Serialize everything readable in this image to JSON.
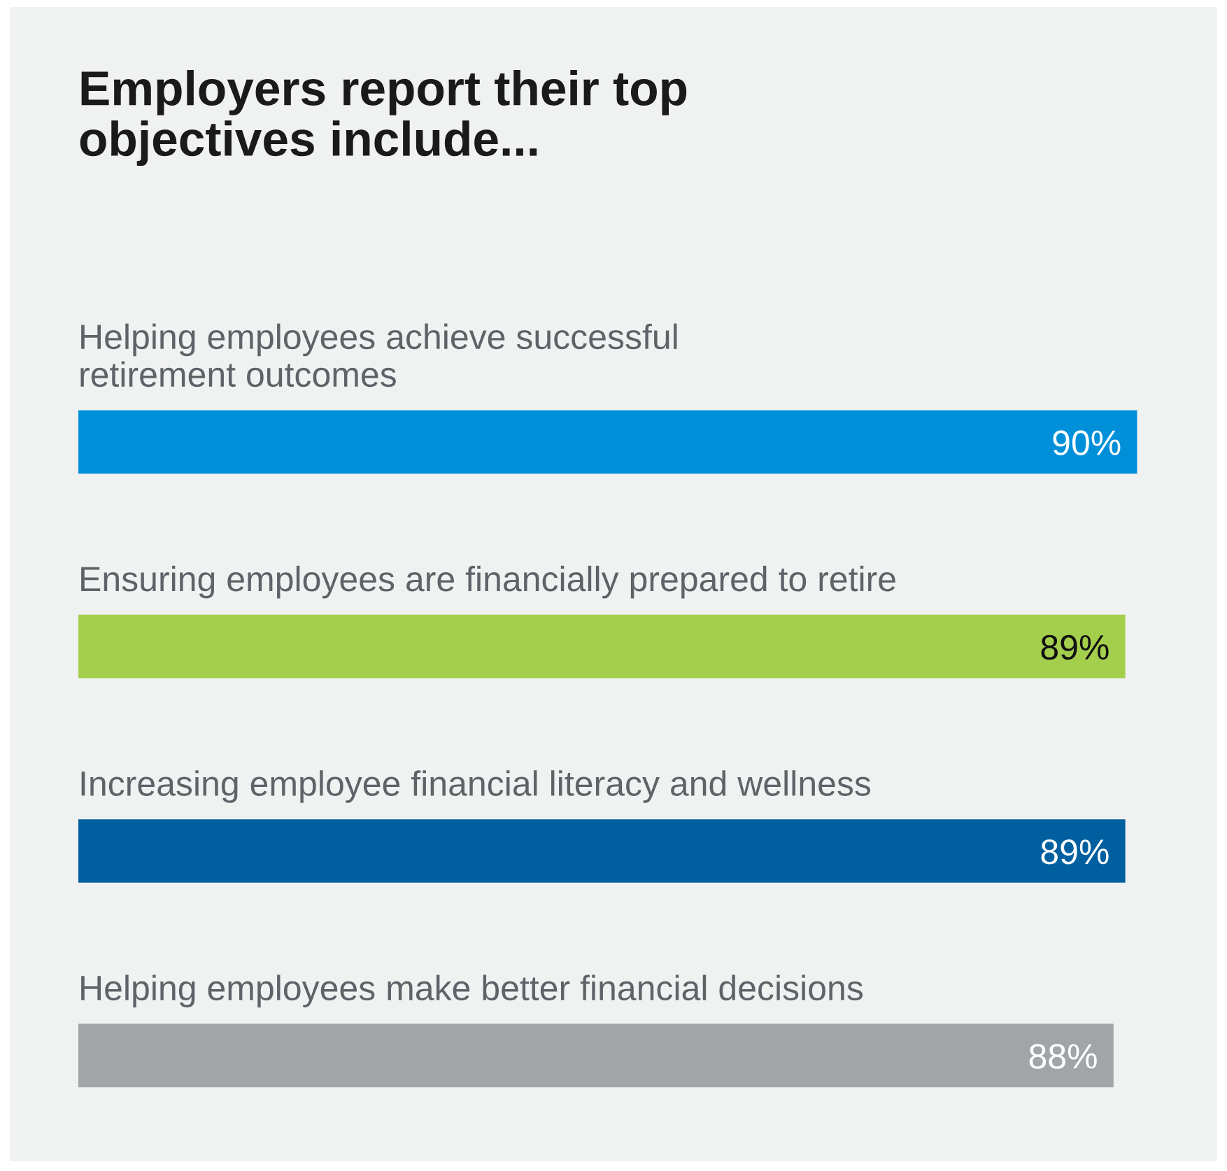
{
  "chart_data": {
    "type": "bar",
    "orientation": "horizontal",
    "title": "Employers report their top\nobjectives include...",
    "categories": [
      "Helping employees achieve successful\nretirement outcomes",
      "Ensuring employees are financially prepared to retire",
      "Increasing employee financial literacy and wellness",
      "Helping employees make better financial decisions"
    ],
    "values": [
      90,
      89,
      89,
      88
    ],
    "colors": [
      "#0090d9",
      "#a4cf4c",
      "#00609f",
      "#a2a5a8"
    ],
    "value_labels": [
      "90%",
      "89%",
      "89%",
      "88%"
    ],
    "legend": false
  }
}
